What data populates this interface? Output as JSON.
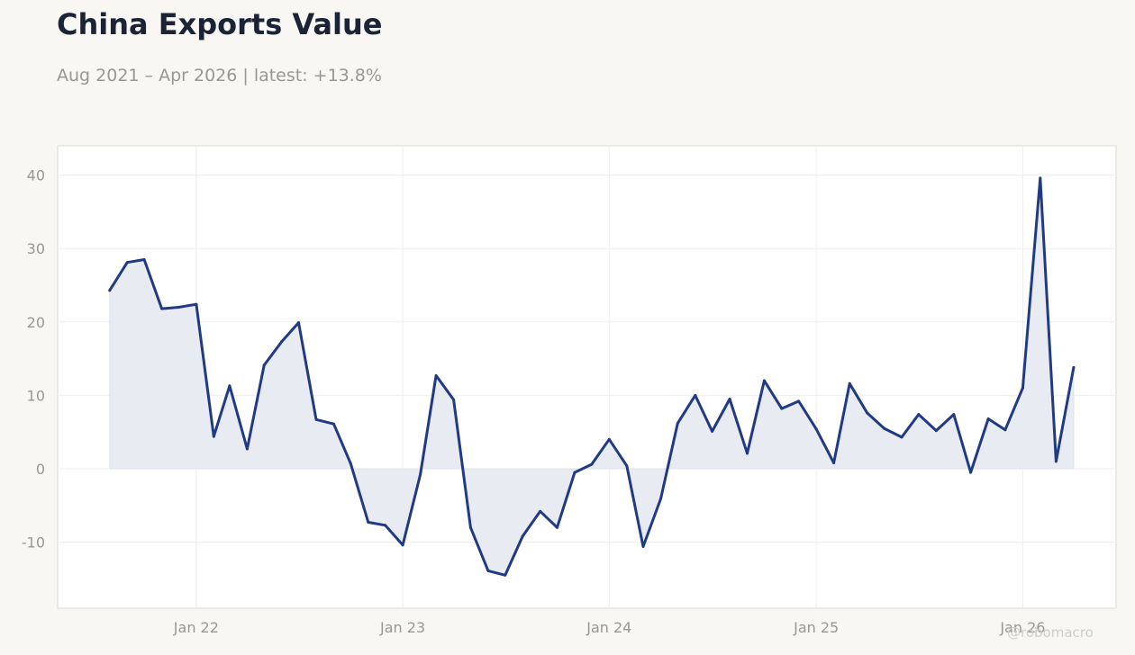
{
  "title": "China Exports Value",
  "subtitle": "Aug 2021 – Apr 2026 | latest: +13.8%",
  "watermark": "@robomacro",
  "colors": {
    "line": "#213a84",
    "fill": "#e9ebf3",
    "plot_background": "#ffffff",
    "plot_border": "#dcdad3",
    "grid": "#eeeeee",
    "tick_text": "#999792",
    "page_background": "#f8f7f4"
  },
  "chart_data": {
    "type": "area",
    "grid": true,
    "legend": "none",
    "xlim": [
      "2021-05-01",
      "2026-06-15"
    ],
    "ylim": [
      -19,
      44
    ],
    "x_ticks": [
      "2022-01-01",
      "2023-01-01",
      "2024-01-01",
      "2025-01-01",
      "2026-01-01"
    ],
    "x_tick_labels": [
      "Jan 22",
      "Jan 23",
      "Jan 24",
      "Jan 25",
      "Jan 26"
    ],
    "y_ticks": [
      -10,
      0,
      10,
      20,
      30,
      40
    ],
    "y_tick_labels": [
      "-10",
      "0",
      "10",
      "20",
      "30",
      "40"
    ],
    "x": [
      "2021-08-01",
      "2021-09-01",
      "2021-10-01",
      "2021-11-01",
      "2021-12-01",
      "2022-01-01",
      "2022-02-01",
      "2022-03-01",
      "2022-04-01",
      "2022-05-01",
      "2022-06-01",
      "2022-07-01",
      "2022-08-01",
      "2022-09-01",
      "2022-10-01",
      "2022-11-01",
      "2022-12-01",
      "2023-01-01",
      "2023-02-01",
      "2023-03-01",
      "2023-04-01",
      "2023-05-01",
      "2023-06-01",
      "2023-07-01",
      "2023-08-01",
      "2023-09-01",
      "2023-10-01",
      "2023-11-01",
      "2023-12-01",
      "2024-01-01",
      "2024-02-01",
      "2024-03-01",
      "2024-04-01",
      "2024-05-01",
      "2024-06-01",
      "2024-07-01",
      "2024-08-01",
      "2024-09-01",
      "2024-10-01",
      "2024-11-01",
      "2024-12-01",
      "2025-01-01",
      "2025-02-01",
      "2025-03-01",
      "2025-04-01",
      "2025-05-01",
      "2025-06-01",
      "2025-07-01",
      "2025-08-01",
      "2025-09-01",
      "2025-10-01",
      "2025-11-01",
      "2025-12-01",
      "2026-01-01",
      "2026-02-01",
      "2026-03-01",
      "2026-04-01"
    ],
    "series": [
      {
        "values": [
          24.3,
          28.1,
          28.5,
          21.8,
          22.0,
          22.4,
          4.4,
          11.3,
          2.7,
          14.1,
          17.3,
          19.9,
          6.7,
          6.1,
          0.7,
          -7.3,
          -7.7,
          -10.4,
          -0.8,
          12.7,
          9.4,
          -8.0,
          -13.9,
          -14.5,
          -9.2,
          -5.8,
          -8.0,
          -0.5,
          0.6,
          4.0,
          0.4,
          -10.6,
          -4.1,
          6.2,
          10.0,
          5.1,
          9.5,
          2.1,
          12.0,
          8.2,
          9.2,
          5.4,
          0.8,
          11.6,
          7.6,
          5.5,
          4.3,
          7.4,
          5.2,
          7.4,
          -0.5,
          6.8,
          5.3,
          11.0,
          39.6,
          1.0,
          13.8
        ]
      }
    ]
  }
}
